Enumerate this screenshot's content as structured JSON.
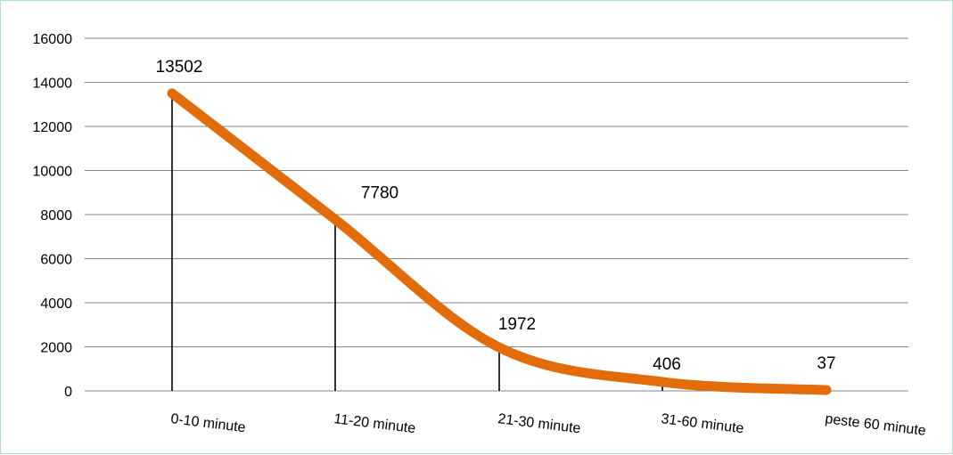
{
  "chart_data": {
    "type": "line",
    "categories": [
      "0-10 minute",
      "11-20 minute",
      "21-30 minute",
      "31-60 minute",
      "peste 60 minute"
    ],
    "series": [
      {
        "values": [
          13502,
          7780,
          1972,
          406,
          37
        ]
      }
    ],
    "data_labels": [
      "13502",
      "7780",
      "1972",
      "406",
      "37"
    ],
    "title": "",
    "xlabel": "",
    "ylabel": "",
    "ylim": [
      0,
      16000
    ],
    "yticks": [
      0,
      2000,
      4000,
      6000,
      8000,
      10000,
      12000,
      14000,
      16000
    ],
    "ytick_labels": [
      "0",
      "2000",
      "4000",
      "6000",
      "8000",
      "10000",
      "12000",
      "14000",
      "16000"
    ],
    "grid": "horizontal",
    "legend": "none",
    "line_style": "smoothed",
    "drop_lines": true,
    "x_labels_rotation": "slanted",
    "colors": {
      "series": "#e36c0a",
      "gridline": "#868686",
      "drop_line": "#000000",
      "border": "#a9ddd6"
    }
  }
}
